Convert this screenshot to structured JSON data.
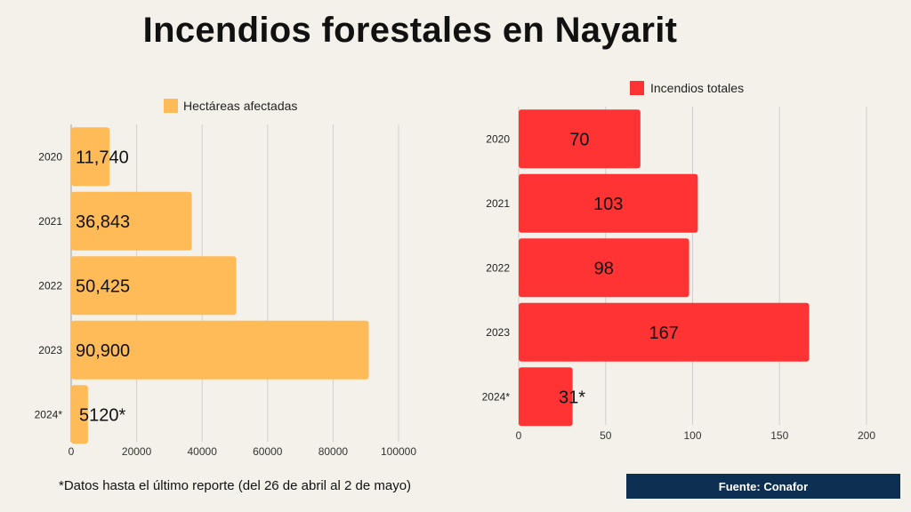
{
  "title": "Incendios forestales en Nayarit",
  "footnote": "*Datos hasta el último reporte  (del 26 de abril al 2 de mayo)",
  "source": "Fuente: Conafor",
  "chart_data": [
    {
      "type": "bar",
      "orientation": "horizontal",
      "series": [
        {
          "name": "Hectáreas afectadas",
          "values": [
            11740,
            36843,
            50425,
            90900,
            5120
          ]
        }
      ],
      "categories": [
        "2020",
        "2021",
        "2022",
        "2023",
        "2024*"
      ],
      "value_labels": [
        "11,740",
        "36,843",
        "50,425",
        "90,900",
        "5120*"
      ],
      "xlim": [
        0,
        100000
      ],
      "ticks": [
        0,
        20000,
        40000,
        60000,
        80000,
        100000
      ],
      "tick_labels": [
        "0",
        "20000",
        "40000",
        "60000",
        "80000",
        "100000"
      ],
      "grid": true,
      "legend_position": "top",
      "color": "#ffbb57"
    },
    {
      "type": "bar",
      "orientation": "horizontal",
      "series": [
        {
          "name": "Incendios totales",
          "values": [
            70,
            103,
            98,
            167,
            31
          ]
        }
      ],
      "categories": [
        "2020",
        "2021",
        "2022",
        "2023",
        "2024*"
      ],
      "value_labels": [
        "70",
        "103",
        "98",
        "167",
        "31*"
      ],
      "xlim": [
        0,
        200
      ],
      "ticks": [
        0,
        50,
        100,
        150,
        200
      ],
      "tick_labels": [
        "0",
        "50",
        "100",
        "150",
        "200"
      ],
      "grid": true,
      "legend_position": "top",
      "color": "#ff3333"
    }
  ]
}
